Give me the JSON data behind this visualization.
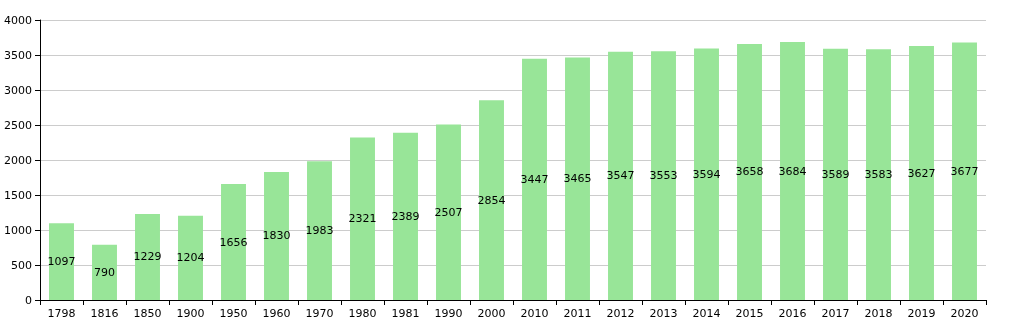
{
  "chart_data": {
    "type": "bar",
    "categories": [
      "1798",
      "1816",
      "1850",
      "1900",
      "1950",
      "1960",
      "1970",
      "1980",
      "1981",
      "1990",
      "2000",
      "2010",
      "2011",
      "2012",
      "2013",
      "2014",
      "2015",
      "2016",
      "2017",
      "2018",
      "2019",
      "2020"
    ],
    "values": [
      1097,
      790,
      1229,
      1204,
      1656,
      1830,
      1983,
      2321,
      2389,
      2507,
      2854,
      3447,
      3465,
      3547,
      3553,
      3594,
      3658,
      3684,
      3589,
      3583,
      3627,
      3677
    ],
    "color": "#98e598",
    "ylim": [
      0,
      4000
    ],
    "yticks": [
      0,
      500,
      1000,
      1500,
      2000,
      2500,
      3000,
      3500,
      4000
    ],
    "grid": "y",
    "data_labels": true
  }
}
